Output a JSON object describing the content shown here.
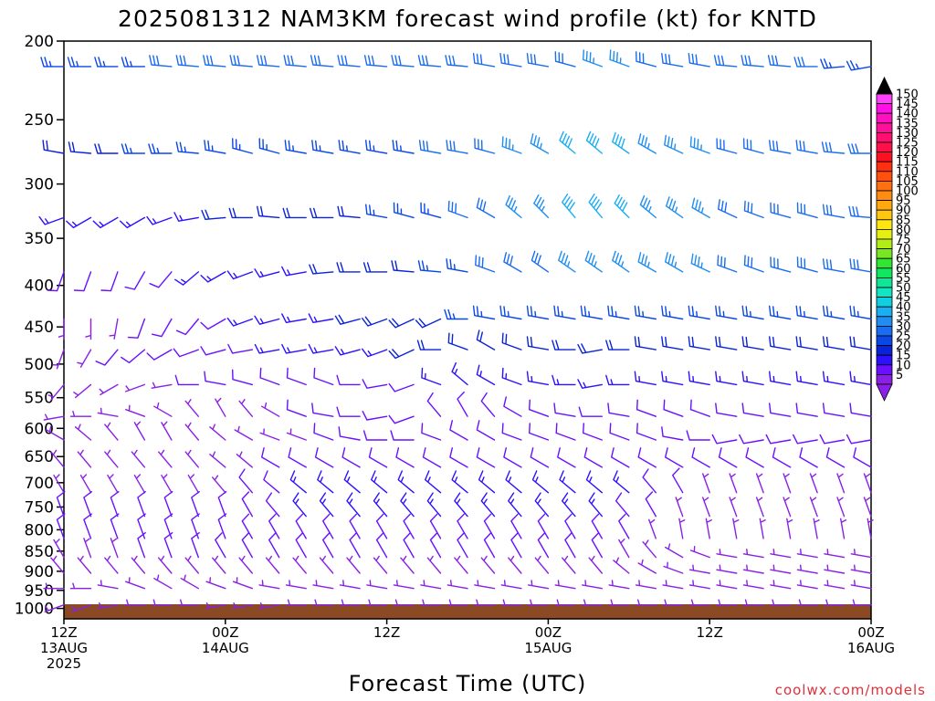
{
  "chart_data": {
    "type": "wind_barb_time_height",
    "title": "2025081312 NAM3KM forecast wind profile (kt) for KNTD",
    "xlabel": "Forecast Time (UTC)",
    "credit": "coolwx.com/models",
    "y_ticks": [
      200,
      250,
      300,
      350,
      400,
      450,
      500,
      550,
      600,
      650,
      700,
      750,
      800,
      850,
      900,
      950,
      1000
    ],
    "y_range": [
      1030,
      200
    ],
    "y_scale": "log",
    "x_ticks": [
      {
        "hour": 0,
        "lines": [
          "12Z",
          "13AUG",
          "2025"
        ]
      },
      {
        "hour": 12,
        "lines": [
          "00Z",
          "14AUG"
        ]
      },
      {
        "hour": 24,
        "lines": [
          "12Z"
        ]
      },
      {
        "hour": 36,
        "lines": [
          "00Z",
          "15AUG"
        ]
      },
      {
        "hour": 48,
        "lines": [
          "12Z"
        ]
      },
      {
        "hour": 60,
        "lines": [
          "00Z",
          "16AUG"
        ]
      }
    ],
    "x_range": [
      0,
      60
    ],
    "time_step_hours": 2,
    "surface_pressure": 1012,
    "colorbar": {
      "levels": [
        5,
        10,
        15,
        20,
        25,
        30,
        35,
        40,
        45,
        50,
        55,
        60,
        65,
        70,
        75,
        80,
        85,
        90,
        95,
        100,
        105,
        110,
        115,
        120,
        125,
        130,
        135,
        140,
        145,
        150
      ],
      "labels": [
        "5",
        "10",
        "15",
        "20",
        "25",
        "30",
        "35",
        "40",
        "45",
        "50",
        "55",
        "60",
        "65",
        "70",
        "75",
        "80",
        "85",
        "90",
        "95",
        "100",
        "105",
        "110",
        "115",
        "120",
        "125",
        "130",
        "135",
        "140",
        "145",
        "150"
      ],
      "colors": [
        "#8a1fe6",
        "#6a10ff",
        "#2c10ff",
        "#0a22d8",
        "#0a48e6",
        "#1a6cf0",
        "#1e8ef2",
        "#1aaef2",
        "#10cfe0",
        "#10e6c2",
        "#10e696",
        "#10e660",
        "#30e630",
        "#78e620",
        "#b4ec18",
        "#e6f010",
        "#ffe610",
        "#ffc810",
        "#ffa810",
        "#ff8c10",
        "#ff7010",
        "#ff5010",
        "#ff3010",
        "#ff1020",
        "#ff1048",
        "#ff1070",
        "#ff1098",
        "#ff10c0",
        "#ff10e6",
        "#ff40ff"
      ]
    },
    "levels": [
      {
        "p": 215,
        "dir": [
          270,
          270,
          270,
          270,
          275,
          275,
          275,
          275,
          275,
          275,
          275,
          275,
          275,
          275,
          275,
          275,
          280,
          280,
          280,
          285,
          290,
          290,
          285,
          280,
          280,
          275,
          275,
          275,
          270,
          265,
          260
        ],
        "spd": [
          25,
          25,
          25,
          25,
          30,
          30,
          30,
          30,
          30,
          30,
          30,
          30,
          30,
          30,
          30,
          30,
          30,
          30,
          30,
          30,
          35,
          35,
          30,
          30,
          30,
          30,
          30,
          30,
          30,
          25,
          25
        ]
      },
      {
        "p": 275,
        "dir": [
          280,
          275,
          270,
          270,
          270,
          275,
          280,
          285,
          285,
          280,
          280,
          280,
          280,
          280,
          280,
          280,
          285,
          290,
          300,
          310,
          310,
          305,
          300,
          295,
          290,
          285,
          285,
          280,
          280,
          275,
          270
        ],
        "spd": [
          20,
          20,
          20,
          25,
          25,
          25,
          25,
          25,
          25,
          25,
          25,
          25,
          25,
          25,
          30,
          30,
          30,
          35,
          35,
          40,
          40,
          40,
          35,
          35,
          35,
          30,
          30,
          30,
          30,
          30,
          30
        ]
      },
      {
        "p": 330,
        "dir": [
          250,
          240,
          240,
          240,
          250,
          260,
          265,
          270,
          275,
          270,
          270,
          275,
          280,
          285,
          285,
          290,
          300,
          310,
          315,
          320,
          320,
          315,
          310,
          305,
          300,
          295,
          290,
          285,
          285,
          280,
          275
        ],
        "spd": [
          15,
          15,
          15,
          15,
          15,
          15,
          20,
          20,
          20,
          20,
          20,
          20,
          25,
          25,
          25,
          30,
          30,
          35,
          35,
          40,
          40,
          40,
          35,
          35,
          35,
          30,
          30,
          30,
          30,
          30,
          30
        ]
      },
      {
        "p": 385,
        "dir": [
          200,
          200,
          200,
          210,
          220,
          230,
          240,
          250,
          255,
          260,
          265,
          270,
          270,
          275,
          275,
          280,
          290,
          300,
          305,
          305,
          305,
          305,
          300,
          300,
          295,
          290,
          290,
          285,
          285,
          280,
          280
        ],
        "spd": [
          10,
          10,
          10,
          10,
          10,
          15,
          15,
          15,
          15,
          15,
          20,
          20,
          20,
          20,
          25,
          25,
          30,
          30,
          30,
          35,
          35,
          35,
          35,
          35,
          35,
          30,
          30,
          30,
          30,
          30,
          30
        ]
      },
      {
        "p": 440,
        "dir": [
          180,
          180,
          190,
          200,
          210,
          220,
          240,
          250,
          255,
          260,
          260,
          255,
          250,
          245,
          245,
          270,
          280,
          280,
          280,
          280,
          280,
          280,
          280,
          280,
          280,
          280,
          280,
          280,
          280,
          280,
          280
        ],
        "spd": [
          5,
          5,
          5,
          10,
          10,
          10,
          10,
          15,
          15,
          15,
          15,
          20,
          20,
          20,
          20,
          25,
          25,
          25,
          25,
          25,
          25,
          25,
          25,
          25,
          25,
          25,
          25,
          25,
          25,
          25,
          25
        ]
      },
      {
        "p": 480,
        "dir": [
          200,
          210,
          220,
          230,
          240,
          250,
          255,
          260,
          260,
          260,
          260,
          255,
          250,
          245,
          270,
          290,
          300,
          290,
          280,
          270,
          260,
          270,
          280,
          280,
          280,
          280,
          280,
          280,
          280,
          280,
          280
        ],
        "spd": [
          5,
          5,
          10,
          10,
          10,
          10,
          10,
          10,
          15,
          15,
          15,
          15,
          15,
          20,
          20,
          20,
          20,
          20,
          20,
          20,
          20,
          20,
          20,
          20,
          20,
          20,
          20,
          20,
          20,
          20,
          20
        ]
      },
      {
        "p": 530,
        "dir": [
          220,
          230,
          240,
          250,
          260,
          270,
          280,
          285,
          290,
          290,
          290,
          270,
          260,
          250,
          290,
          310,
          300,
          290,
          280,
          270,
          260,
          270,
          280,
          280,
          280,
          280,
          280,
          280,
          280,
          280,
          280
        ],
        "spd": [
          5,
          5,
          5,
          5,
          5,
          10,
          10,
          10,
          10,
          10,
          10,
          10,
          10,
          10,
          15,
          15,
          15,
          15,
          15,
          15,
          15,
          15,
          15,
          15,
          15,
          15,
          15,
          15,
          15,
          15,
          15
        ]
      },
      {
        "p": 580,
        "dir": [
          260,
          270,
          280,
          290,
          300,
          320,
          330,
          320,
          300,
          290,
          280,
          270,
          260,
          250,
          320,
          330,
          320,
          300,
          290,
          280,
          270,
          280,
          290,
          290,
          290,
          280,
          280,
          280,
          280,
          280,
          280
        ],
        "spd": [
          5,
          5,
          5,
          5,
          5,
          5,
          5,
          5,
          5,
          10,
          10,
          10,
          10,
          10,
          10,
          10,
          10,
          10,
          10,
          10,
          10,
          10,
          10,
          10,
          10,
          10,
          10,
          10,
          10,
          10,
          10
        ]
      },
      {
        "p": 620,
        "dir": [
          300,
          310,
          320,
          330,
          330,
          320,
          310,
          300,
          290,
          290,
          290,
          280,
          270,
          270,
          290,
          300,
          300,
          290,
          290,
          290,
          290,
          290,
          290,
          280,
          270,
          260,
          260,
          260,
          260,
          260,
          260
        ],
        "spd": [
          5,
          5,
          5,
          5,
          5,
          5,
          5,
          5,
          5,
          5,
          10,
          10,
          10,
          10,
          10,
          10,
          10,
          10,
          10,
          10,
          10,
          10,
          10,
          10,
          10,
          10,
          10,
          10,
          10,
          10,
          10
        ]
      },
      {
        "p": 670,
        "dir": [
          320,
          320,
          320,
          320,
          320,
          320,
          310,
          310,
          300,
          300,
          300,
          300,
          300,
          300,
          300,
          300,
          300,
          300,
          300,
          300,
          300,
          300,
          300,
          300,
          300,
          300,
          300,
          300,
          300,
          300,
          300
        ],
        "spd": [
          5,
          5,
          5,
          5,
          5,
          5,
          5,
          5,
          10,
          10,
          10,
          10,
          10,
          10,
          10,
          10,
          10,
          10,
          10,
          10,
          10,
          10,
          10,
          10,
          10,
          10,
          10,
          10,
          10,
          10,
          10
        ]
      },
      {
        "p": 720,
        "dir": [
          330,
          330,
          330,
          330,
          330,
          330,
          320,
          320,
          310,
          310,
          310,
          310,
          310,
          310,
          310,
          310,
          310,
          310,
          310,
          310,
          310,
          310,
          320,
          330,
          340,
          340,
          340,
          340,
          340,
          340,
          340
        ],
        "spd": [
          5,
          5,
          5,
          5,
          5,
          5,
          5,
          10,
          10,
          15,
          15,
          15,
          15,
          15,
          15,
          15,
          15,
          15,
          15,
          15,
          15,
          15,
          10,
          10,
          5,
          5,
          5,
          5,
          5,
          5,
          5
        ]
      },
      {
        "p": 770,
        "dir": [
          340,
          340,
          340,
          340,
          340,
          340,
          340,
          330,
          320,
          320,
          320,
          320,
          320,
          320,
          320,
          320,
          320,
          320,
          320,
          320,
          320,
          320,
          330,
          340,
          340,
          340,
          340,
          340,
          340,
          340,
          340
        ],
        "spd": [
          10,
          10,
          10,
          10,
          10,
          10,
          10,
          10,
          10,
          15,
          15,
          15,
          15,
          15,
          15,
          15,
          15,
          15,
          15,
          15,
          15,
          10,
          10,
          5,
          5,
          5,
          5,
          5,
          5,
          5,
          5
        ]
      },
      {
        "p": 820,
        "dir": [
          340,
          340,
          340,
          340,
          340,
          340,
          340,
          330,
          330,
          330,
          330,
          330,
          330,
          330,
          330,
          330,
          330,
          330,
          330,
          330,
          330,
          330,
          340,
          350,
          350,
          350,
          350,
          350,
          350,
          350,
          350
        ],
        "spd": [
          10,
          10,
          10,
          10,
          10,
          10,
          10,
          10,
          10,
          10,
          10,
          10,
          10,
          10,
          10,
          10,
          10,
          10,
          10,
          10,
          10,
          10,
          5,
          5,
          5,
          5,
          5,
          5,
          5,
          5,
          5
        ]
      },
      {
        "p": 865,
        "dir": [
          330,
          340,
          340,
          340,
          340,
          340,
          330,
          330,
          330,
          330,
          330,
          330,
          330,
          330,
          330,
          330,
          330,
          330,
          330,
          330,
          330,
          330,
          320,
          300,
          290,
          280,
          280,
          280,
          280,
          280,
          280
        ],
        "spd": [
          5,
          5,
          5,
          10,
          10,
          10,
          10,
          10,
          10,
          10,
          10,
          10,
          10,
          10,
          10,
          10,
          10,
          10,
          10,
          10,
          10,
          5,
          5,
          5,
          5,
          5,
          5,
          5,
          5,
          5,
          5
        ]
      },
      {
        "p": 905,
        "dir": [
          320,
          320,
          320,
          320,
          320,
          320,
          320,
          320,
          320,
          320,
          320,
          320,
          320,
          320,
          320,
          320,
          320,
          320,
          320,
          320,
          320,
          310,
          300,
          290,
          280,
          280,
          280,
          280,
          280,
          280,
          280
        ],
        "spd": [
          5,
          5,
          5,
          5,
          5,
          5,
          5,
          5,
          5,
          5,
          5,
          5,
          5,
          5,
          5,
          5,
          5,
          5,
          5,
          5,
          5,
          5,
          5,
          5,
          5,
          5,
          5,
          5,
          5,
          5,
          5
        ]
      },
      {
        "p": 945,
        "dir": [
          270,
          270,
          280,
          290,
          300,
          300,
          290,
          290,
          280,
          280,
          280,
          280,
          280,
          280,
          280,
          280,
          280,
          280,
          280,
          280,
          280,
          280,
          280,
          280,
          280,
          280,
          280,
          280,
          280,
          280,
          280
        ],
        "spd": [
          5,
          5,
          5,
          5,
          5,
          5,
          5,
          5,
          5,
          5,
          5,
          5,
          5,
          5,
          5,
          5,
          5,
          5,
          5,
          5,
          5,
          5,
          5,
          5,
          5,
          5,
          5,
          5,
          5,
          5,
          5
        ]
      },
      {
        "p": 990,
        "dir": [
          250,
          250,
          260,
          270,
          270,
          270,
          260,
          260,
          260,
          270,
          270,
          270,
          270,
          270,
          270,
          270,
          270,
          270,
          270,
          270,
          270,
          270,
          270,
          270,
          270,
          270,
          270,
          270,
          270,
          270,
          270
        ],
        "spd": [
          5,
          5,
          5,
          5,
          5,
          5,
          5,
          5,
          5,
          5,
          5,
          5,
          5,
          5,
          5,
          5,
          5,
          5,
          5,
          5,
          5,
          5,
          5,
          5,
          5,
          5,
          5,
          5,
          5,
          5,
          5
        ]
      }
    ]
  },
  "colors": {
    "ground": "#8b4a24",
    "axis": "#000000",
    "credit": "#e0303a"
  }
}
